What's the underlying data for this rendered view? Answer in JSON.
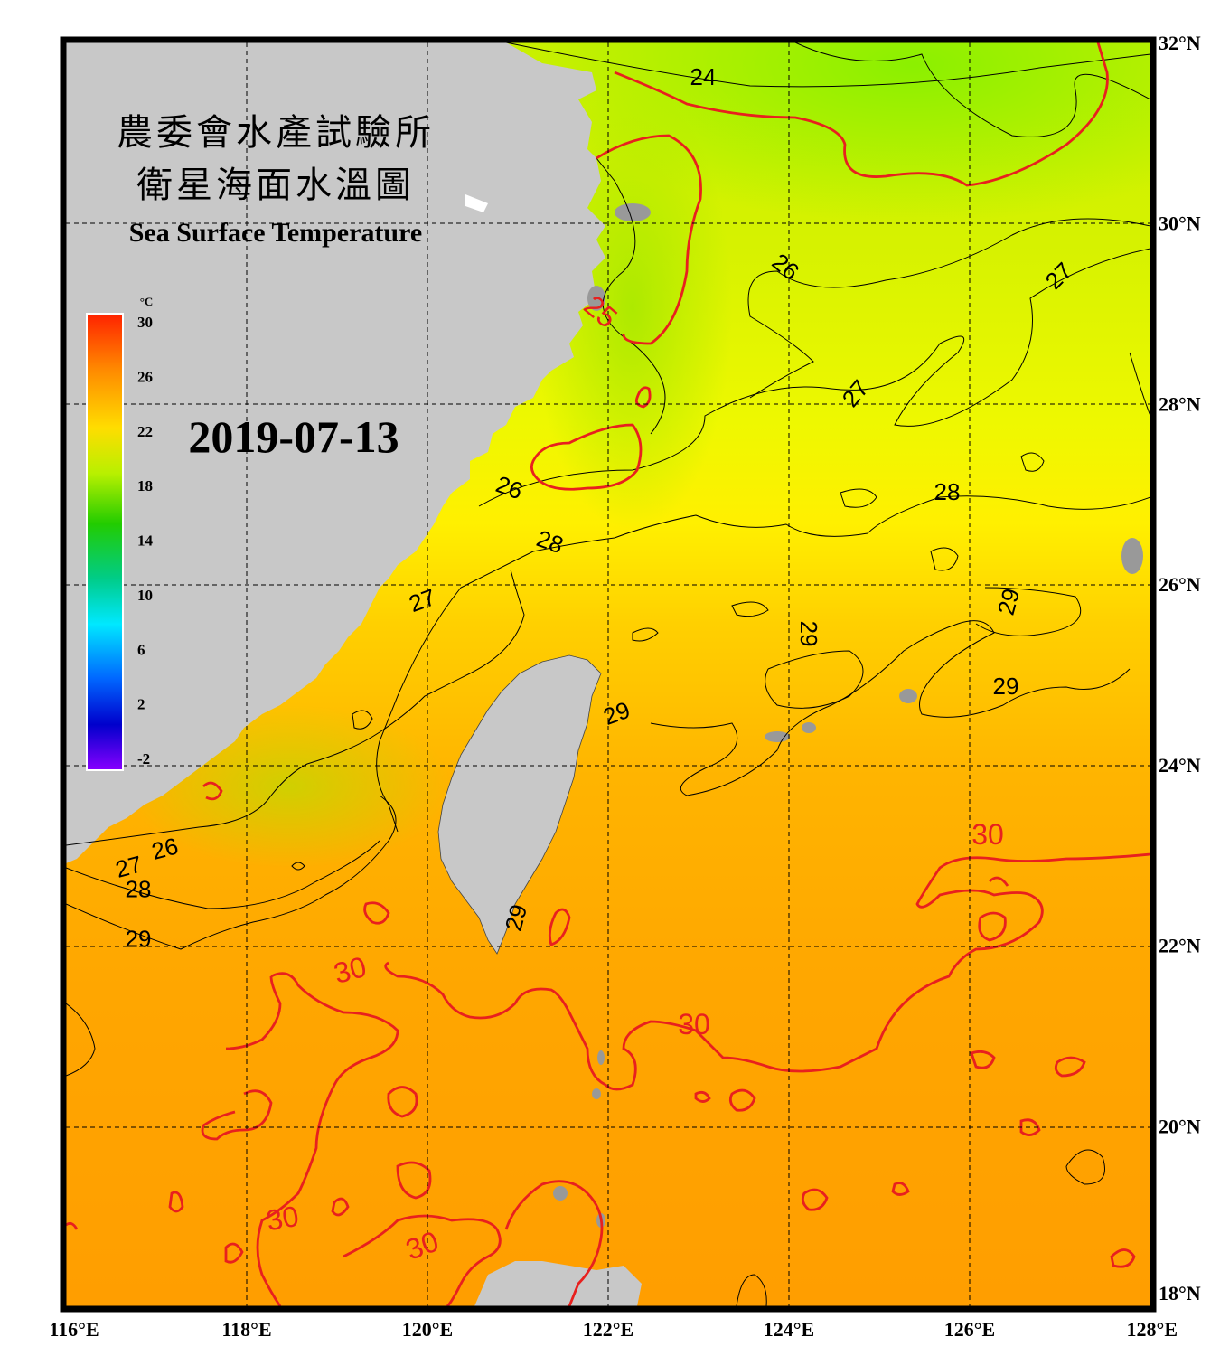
{
  "title": {
    "line1": "農委會水產試驗所",
    "line2": "衛星海面水溫圖",
    "english": "Sea Surface Temperature"
  },
  "date": "2019-07-13",
  "colorbar": {
    "unit": "°C",
    "ticks": [
      "30",
      "26",
      "22",
      "18",
      "14",
      "10",
      "6",
      "2",
      "-2"
    ],
    "colors": [
      "#ff2200",
      "#ff8800",
      "#ffdd00",
      "#b8f000",
      "#22cc00",
      "#00cc88",
      "#00e8ff",
      "#0066ff",
      "#0000cc",
      "#8800ff"
    ]
  },
  "axes": {
    "longitude_labels": [
      "116°E",
      "118°E",
      "120°E",
      "122°E",
      "124°E",
      "126°E",
      "128°E"
    ],
    "latitude_labels": [
      "32°N",
      "30°N",
      "28°N",
      "26°N",
      "24°N",
      "22°N",
      "20°N",
      "18°N"
    ],
    "lon_range": [
      116,
      128
    ],
    "lat_range": [
      18,
      32
    ],
    "grid": "dashed"
  },
  "contour_labels": [
    {
      "text": "24",
      "lon": 123.05,
      "lat": 31.6,
      "color": "black",
      "rot": 0
    },
    {
      "text": "25",
      "lon": 121.9,
      "lat": 29.0,
      "color": "red",
      "rot": 40
    },
    {
      "text": "26",
      "lon": 123.95,
      "lat": 29.5,
      "color": "black",
      "rot": 40
    },
    {
      "text": "27",
      "lon": 127.0,
      "lat": 29.4,
      "color": "black",
      "rot": -45
    },
    {
      "text": "27",
      "lon": 124.75,
      "lat": 28.1,
      "color": "black",
      "rot": -50
    },
    {
      "text": "26",
      "lon": 120.9,
      "lat": 27.05,
      "color": "black",
      "rot": 20
    },
    {
      "text": "28",
      "lon": 125.75,
      "lat": 27.0,
      "color": "black",
      "rot": 0
    },
    {
      "text": "28",
      "lon": 121.35,
      "lat": 26.45,
      "color": "black",
      "rot": 20
    },
    {
      "text": "27",
      "lon": 119.95,
      "lat": 25.8,
      "color": "black",
      "rot": -20
    },
    {
      "text": "29",
      "lon": 126.45,
      "lat": 25.8,
      "color": "black",
      "rot": -75
    },
    {
      "text": "29",
      "lon": 124.2,
      "lat": 25.45,
      "color": "black",
      "rot": 90
    },
    {
      "text": "29",
      "lon": 126.4,
      "lat": 24.85,
      "color": "black",
      "rot": 0
    },
    {
      "text": "29",
      "lon": 122.1,
      "lat": 24.55,
      "color": "black",
      "rot": -20
    },
    {
      "text": "26",
      "lon": 117.1,
      "lat": 23.05,
      "color": "black",
      "rot": -15
    },
    {
      "text": "27",
      "lon": 116.7,
      "lat": 22.85,
      "color": "black",
      "rot": -15
    },
    {
      "text": "28",
      "lon": 116.8,
      "lat": 22.6,
      "color": "black",
      "rot": 0
    },
    {
      "text": "29",
      "lon": 116.8,
      "lat": 22.05,
      "color": "black",
      "rot": 0
    },
    {
      "text": "29",
      "lon": 121.0,
      "lat": 22.3,
      "color": "black",
      "rot": -75
    },
    {
      "text": "30",
      "lon": 126.2,
      "lat": 23.2,
      "color": "red",
      "rot": 0
    },
    {
      "text": "30",
      "lon": 119.15,
      "lat": 21.7,
      "color": "red",
      "rot": -15
    },
    {
      "text": "30",
      "lon": 122.95,
      "lat": 21.1,
      "color": "red",
      "rot": 0
    },
    {
      "text": "30",
      "lon": 118.4,
      "lat": 18.95,
      "color": "red",
      "rot": -10
    },
    {
      "text": "30",
      "lon": 119.95,
      "lat": 18.65,
      "color": "red",
      "rot": -20
    }
  ]
}
